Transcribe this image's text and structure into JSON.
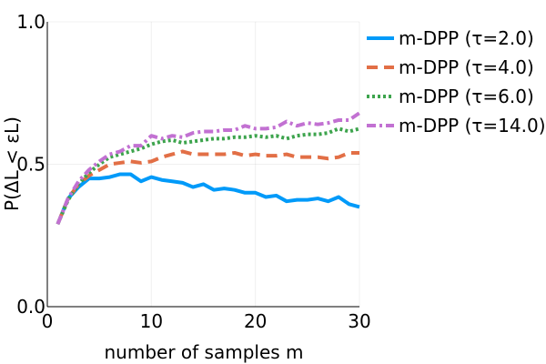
{
  "chart_data": {
    "type": "line",
    "title": "",
    "xlabel": "number of samples m",
    "ylabel": "P(ΔL < εL)",
    "xlim": [
      0,
      30
    ],
    "ylim": [
      0,
      1
    ],
    "xticks": [
      0,
      10,
      20,
      30
    ],
    "xtick_labels": [
      "0",
      "10",
      "20",
      "30"
    ],
    "yticks": [
      0,
      0.5,
      1
    ],
    "ytick_labels": [
      "0.0",
      "0.5",
      "1.0"
    ],
    "grid": true,
    "legend_position": "top-right, outside plot",
    "x": [
      1,
      2,
      3,
      4,
      5,
      6,
      7,
      8,
      9,
      10,
      11,
      12,
      13,
      14,
      15,
      16,
      17,
      18,
      19,
      20,
      21,
      22,
      23,
      24,
      25,
      26,
      27,
      28,
      29,
      30
    ],
    "series": [
      {
        "name": "m-DPP (τ=2.0)",
        "color": "#009af9",
        "dash": "solid",
        "values": [
          0.29,
          0.38,
          0.42,
          0.45,
          0.45,
          0.455,
          0.465,
          0.465,
          0.44,
          0.455,
          0.445,
          0.44,
          0.435,
          0.42,
          0.43,
          0.41,
          0.415,
          0.41,
          0.4,
          0.4,
          0.385,
          0.39,
          0.37,
          0.375,
          0.375,
          0.38,
          0.37,
          0.385,
          0.36,
          0.35
        ]
      },
      {
        "name": "m-DPP (τ=4.0)",
        "color": "#e26f46",
        "dash": "dash",
        "values": [
          0.29,
          0.38,
          0.43,
          0.46,
          0.48,
          0.5,
          0.505,
          0.51,
          0.505,
          0.51,
          0.525,
          0.535,
          0.545,
          0.535,
          0.535,
          0.535,
          0.535,
          0.54,
          0.53,
          0.535,
          0.53,
          0.53,
          0.535,
          0.525,
          0.525,
          0.525,
          0.52,
          0.525,
          0.54,
          0.54
        ]
      },
      {
        "name": "m-DPP (τ=6.0)",
        "color": "#3da44d",
        "dash": "dot",
        "values": [
          0.29,
          0.375,
          0.43,
          0.47,
          0.5,
          0.525,
          0.535,
          0.545,
          0.555,
          0.57,
          0.58,
          0.585,
          0.575,
          0.58,
          0.585,
          0.59,
          0.59,
          0.595,
          0.595,
          0.6,
          0.595,
          0.6,
          0.59,
          0.6,
          0.605,
          0.605,
          0.61,
          0.625,
          0.615,
          0.625
        ]
      },
      {
        "name": "m-DPP (τ=14.0)",
        "color": "#c271d2",
        "dash": "dashdot",
        "values": [
          0.29,
          0.38,
          0.44,
          0.48,
          0.51,
          0.535,
          0.545,
          0.565,
          0.565,
          0.6,
          0.59,
          0.6,
          0.595,
          0.61,
          0.615,
          0.615,
          0.62,
          0.62,
          0.635,
          0.625,
          0.625,
          0.63,
          0.65,
          0.635,
          0.645,
          0.64,
          0.645,
          0.655,
          0.655,
          0.68
        ]
      }
    ]
  }
}
